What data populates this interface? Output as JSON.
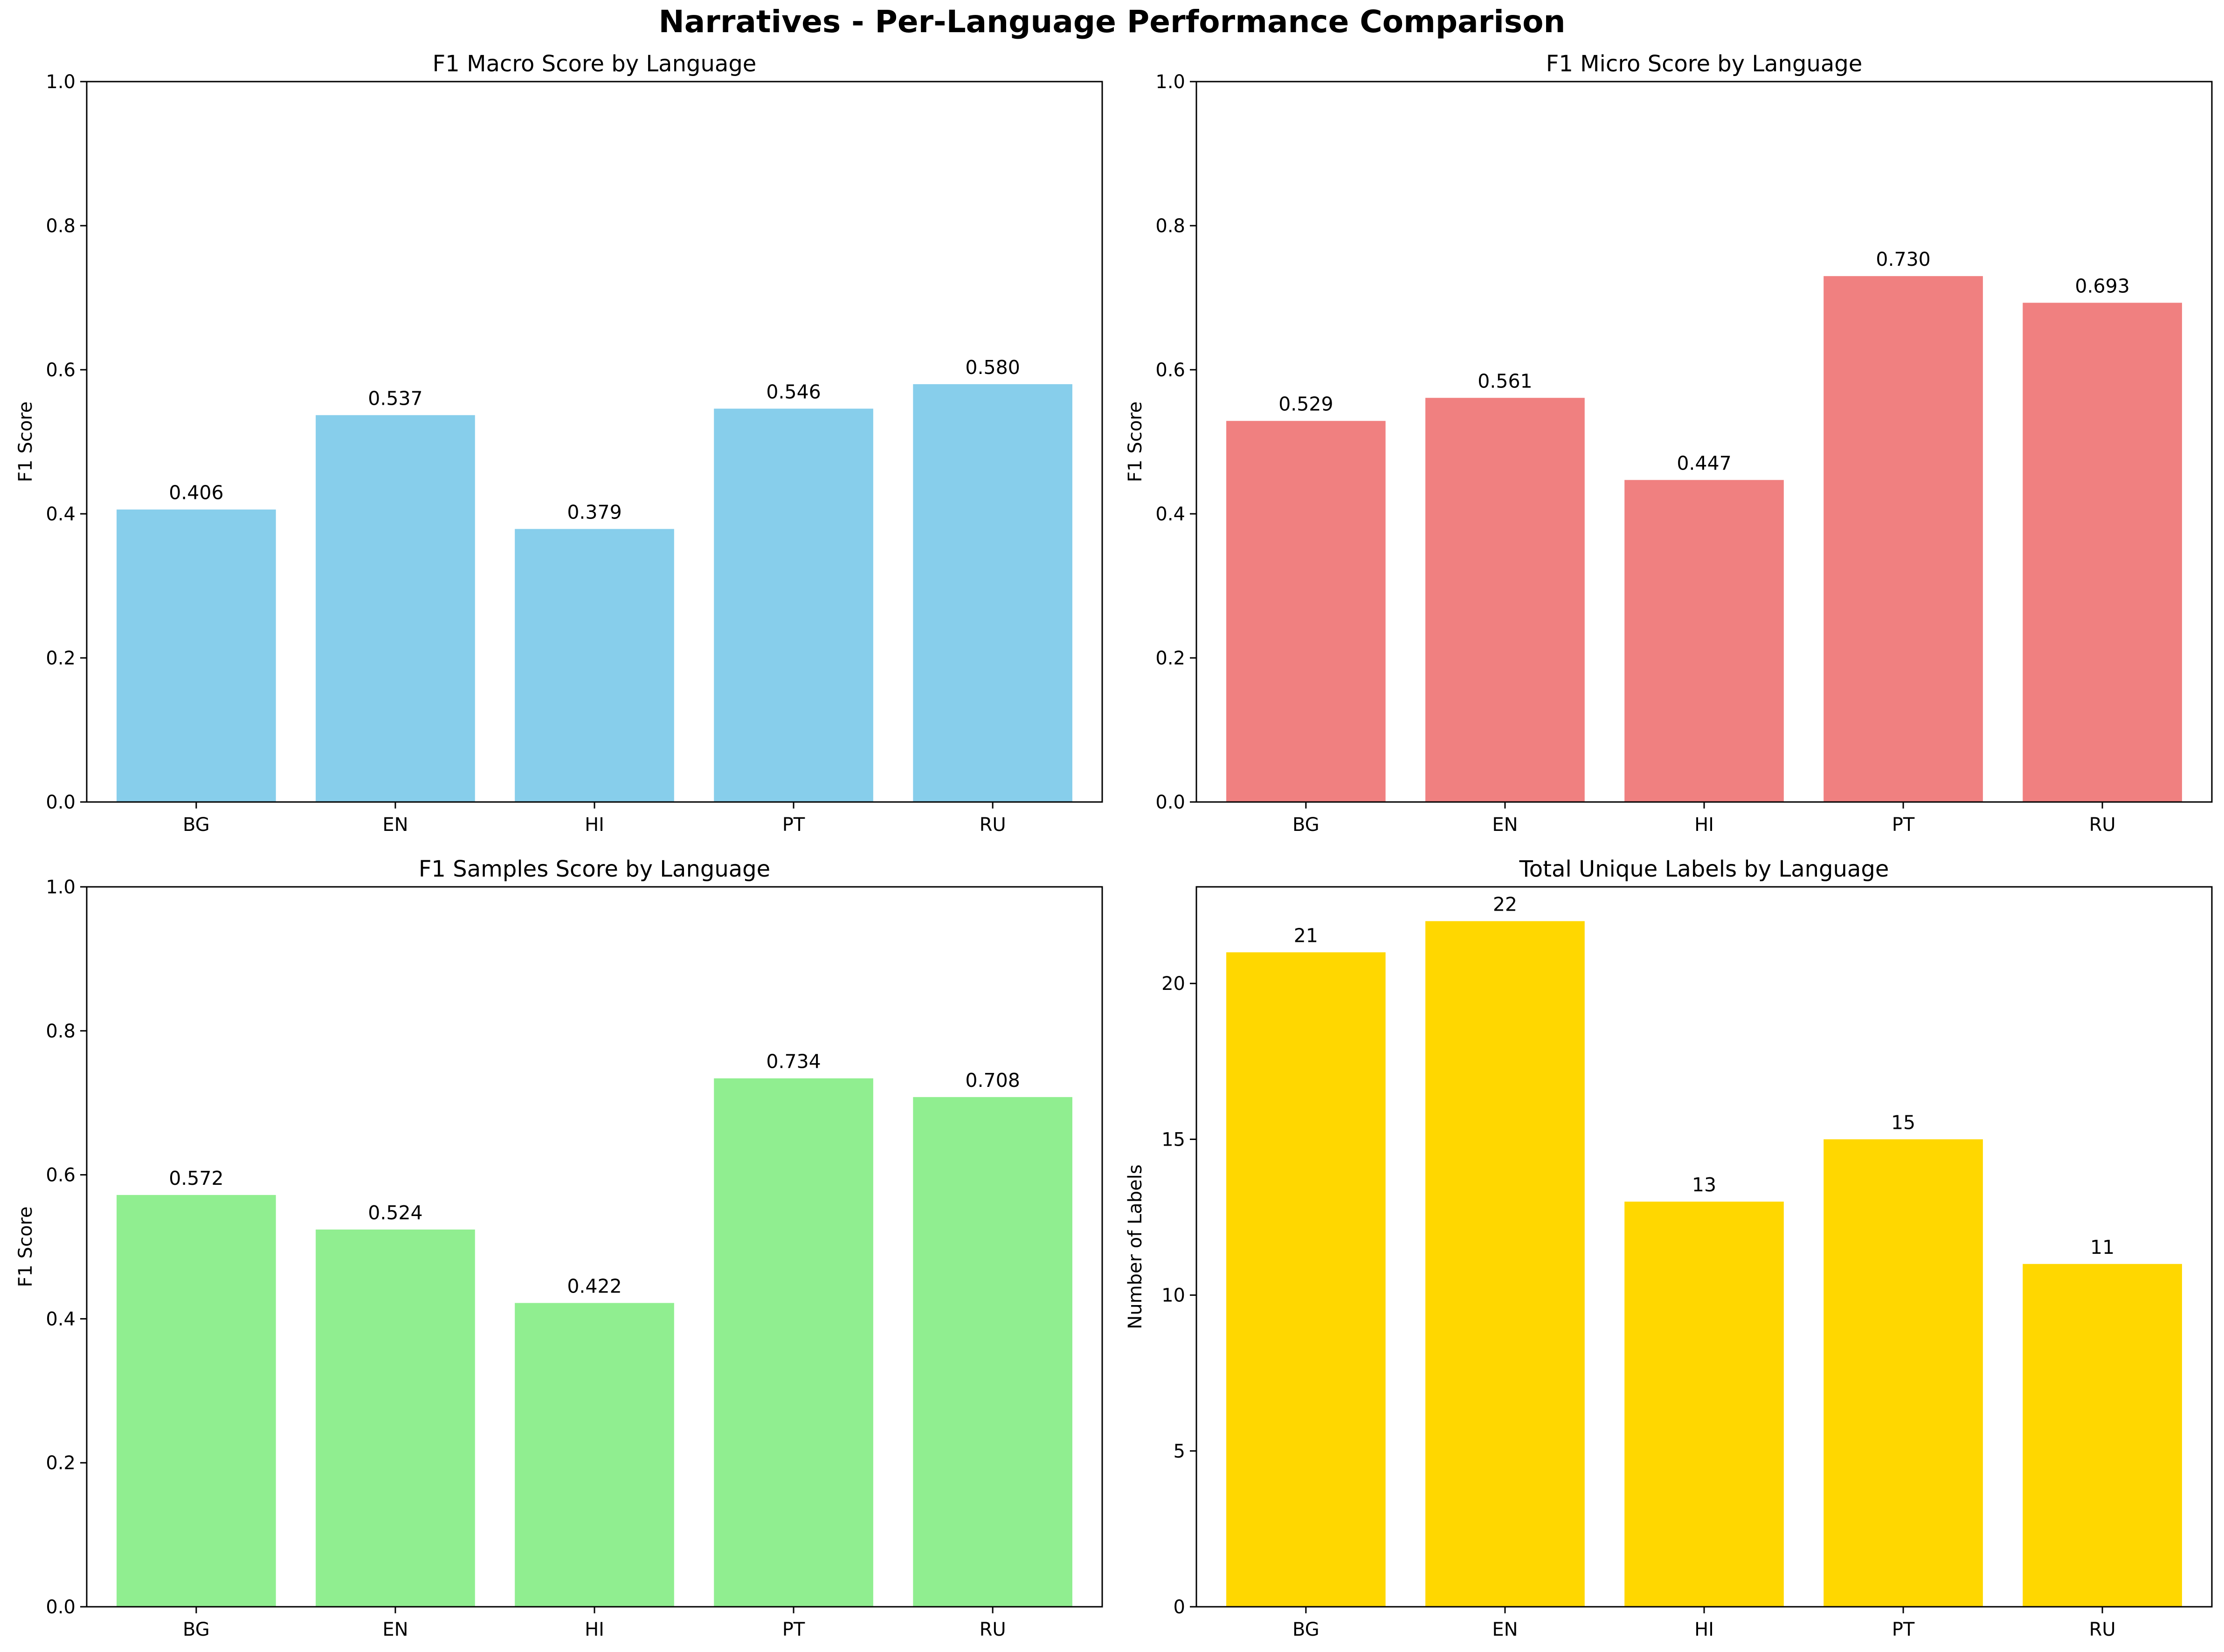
{
  "suptitle": "Narratives - Per-Language Performance Comparison",
  "chart_data": [
    {
      "type": "bar",
      "title": "F1 Macro Score by Language",
      "xlabel": "",
      "ylabel": "F1 Score",
      "categories": [
        "BG",
        "EN",
        "HI",
        "PT",
        "RU"
      ],
      "values": [
        0.406,
        0.537,
        0.379,
        0.546,
        0.58
      ],
      "value_labels": [
        "0.406",
        "0.537",
        "0.379",
        "0.546",
        "0.580"
      ],
      "ylim": [
        0,
        1.0
      ],
      "yticks": [
        0.0,
        0.2,
        0.4,
        0.6,
        0.8,
        1.0
      ],
      "ytick_labels": [
        "0.0",
        "0.2",
        "0.4",
        "0.6",
        "0.8",
        "1.0"
      ],
      "color": "#87CEEB",
      "grid": false
    },
    {
      "type": "bar",
      "title": "F1 Micro Score by Language",
      "xlabel": "",
      "ylabel": "F1 Score",
      "categories": [
        "BG",
        "EN",
        "HI",
        "PT",
        "RU"
      ],
      "values": [
        0.529,
        0.561,
        0.447,
        0.73,
        0.693
      ],
      "value_labels": [
        "0.529",
        "0.561",
        "0.447",
        "0.730",
        "0.693"
      ],
      "ylim": [
        0,
        1.0
      ],
      "yticks": [
        0.0,
        0.2,
        0.4,
        0.6,
        0.8,
        1.0
      ],
      "ytick_labels": [
        "0.0",
        "0.2",
        "0.4",
        "0.6",
        "0.8",
        "1.0"
      ],
      "color": "#F08080",
      "grid": false
    },
    {
      "type": "bar",
      "title": "F1 Samples Score by Language",
      "xlabel": "",
      "ylabel": "F1 Score",
      "categories": [
        "BG",
        "EN",
        "HI",
        "PT",
        "RU"
      ],
      "values": [
        0.572,
        0.524,
        0.422,
        0.734,
        0.708
      ],
      "value_labels": [
        "0.572",
        "0.524",
        "0.422",
        "0.734",
        "0.708"
      ],
      "ylim": [
        0,
        1.0
      ],
      "yticks": [
        0.0,
        0.2,
        0.4,
        0.6,
        0.8,
        1.0
      ],
      "ytick_labels": [
        "0.0",
        "0.2",
        "0.4",
        "0.6",
        "0.8",
        "1.0"
      ],
      "color": "#90EE90",
      "grid": false
    },
    {
      "type": "bar",
      "title": "Total Unique Labels by Language",
      "xlabel": "",
      "ylabel": "Number of Labels",
      "categories": [
        "BG",
        "EN",
        "HI",
        "PT",
        "RU"
      ],
      "values": [
        21,
        22,
        13,
        15,
        11
      ],
      "value_labels": [
        "21",
        "22",
        "13",
        "15",
        "11"
      ],
      "ylim": [
        0,
        23.1
      ],
      "yticks": [
        0,
        5,
        10,
        15,
        20
      ],
      "ytick_labels": [
        "0",
        "5",
        "10",
        "15",
        "20"
      ],
      "color": "#FFD700",
      "grid": false
    }
  ]
}
